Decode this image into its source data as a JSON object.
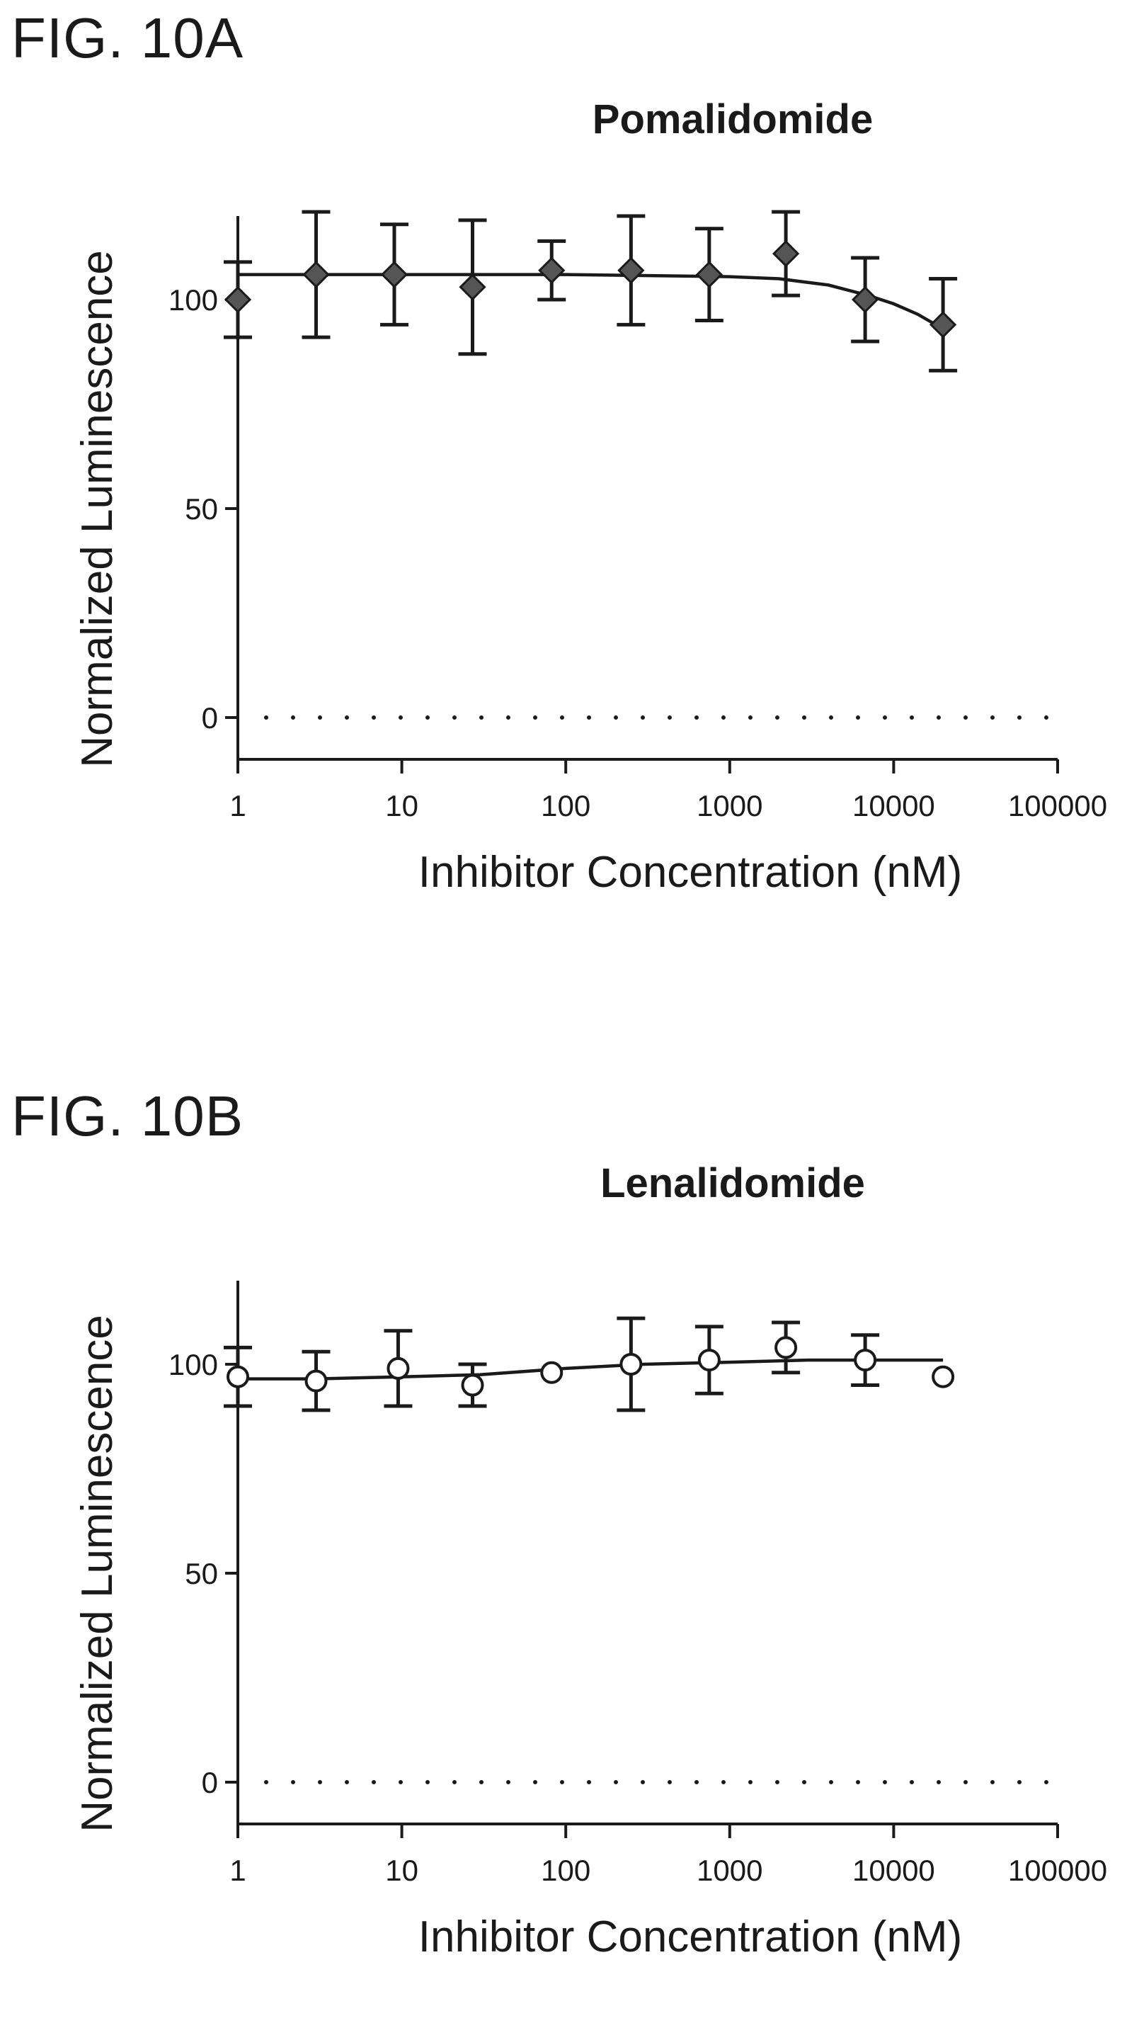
{
  "figures": [
    {
      "label": "FIG. 10A",
      "marker": "diamond",
      "chart_data": {
        "type": "scatter",
        "title": "Pomalidomide",
        "xlabel": "Inhibitor Concentration (nM)",
        "ylabel": "Normalized Luminescence",
        "xscale": "log",
        "xlim": [
          1,
          100000
        ],
        "ylim": [
          -10,
          120
        ],
        "xticks": [
          "1",
          "10",
          "100",
          "1000",
          "10000",
          "100000"
        ],
        "yticks": [
          "0",
          "50",
          "100"
        ],
        "grid": false,
        "reference_line": {
          "y": 0,
          "style": "dotted"
        },
        "series": [
          {
            "x": [
              1,
              3,
              9,
              27,
              82,
              250,
              750,
              2200,
              6700,
              20000
            ],
            "y": [
              100,
              106,
              106,
              103,
              107,
              107,
              106,
              111,
              100,
              94
            ],
            "error": [
              9,
              15,
              12,
              16,
              7,
              13,
              11,
              10,
              10,
              11
            ],
            "fit": [
              [
                1,
                106
              ],
              [
                10,
                106
              ],
              [
                100,
                106
              ],
              [
                1000,
                105.5
              ],
              [
                2000,
                105
              ],
              [
                4000,
                103.5
              ],
              [
                7000,
                101
              ],
              [
                10000,
                99
              ],
              [
                14000,
                96.5
              ],
              [
                20000,
                93
              ]
            ]
          }
        ]
      }
    },
    {
      "label": "FIG. 10B",
      "marker": "circle",
      "chart_data": {
        "type": "scatter",
        "title": "Lenalidomide",
        "xlabel": "Inhibitor Concentration (nM)",
        "ylabel": "Normalized Luminescence",
        "xscale": "log",
        "xlim": [
          1,
          100000
        ],
        "ylim": [
          -10,
          120
        ],
        "xticks": [
          "1",
          "10",
          "100",
          "1000",
          "10000",
          "100000"
        ],
        "yticks": [
          "0",
          "50",
          "100"
        ],
        "grid": false,
        "reference_line": {
          "y": 0,
          "style": "dotted"
        },
        "series": [
          {
            "x": [
              1,
              3,
              9.5,
              27,
              82,
              250,
              750,
              2200,
              6700,
              20000
            ],
            "y": [
              97,
              96,
              99,
              95,
              98,
              100,
              101,
              104,
              101,
              97
            ],
            "error": [
              7,
              7,
              9,
              5,
              0,
              11,
              8,
              6,
              6,
              0
            ],
            "fit": [
              [
                1,
                96.5
              ],
              [
                3,
                96.5
              ],
              [
                10,
                97
              ],
              [
                30,
                97.5
              ],
              [
                100,
                99
              ],
              [
                300,
                100
              ],
              [
                1000,
                100.5
              ],
              [
                3000,
                101
              ],
              [
                10000,
                101
              ],
              [
                20000,
                101
              ]
            ]
          }
        ]
      }
    }
  ]
}
